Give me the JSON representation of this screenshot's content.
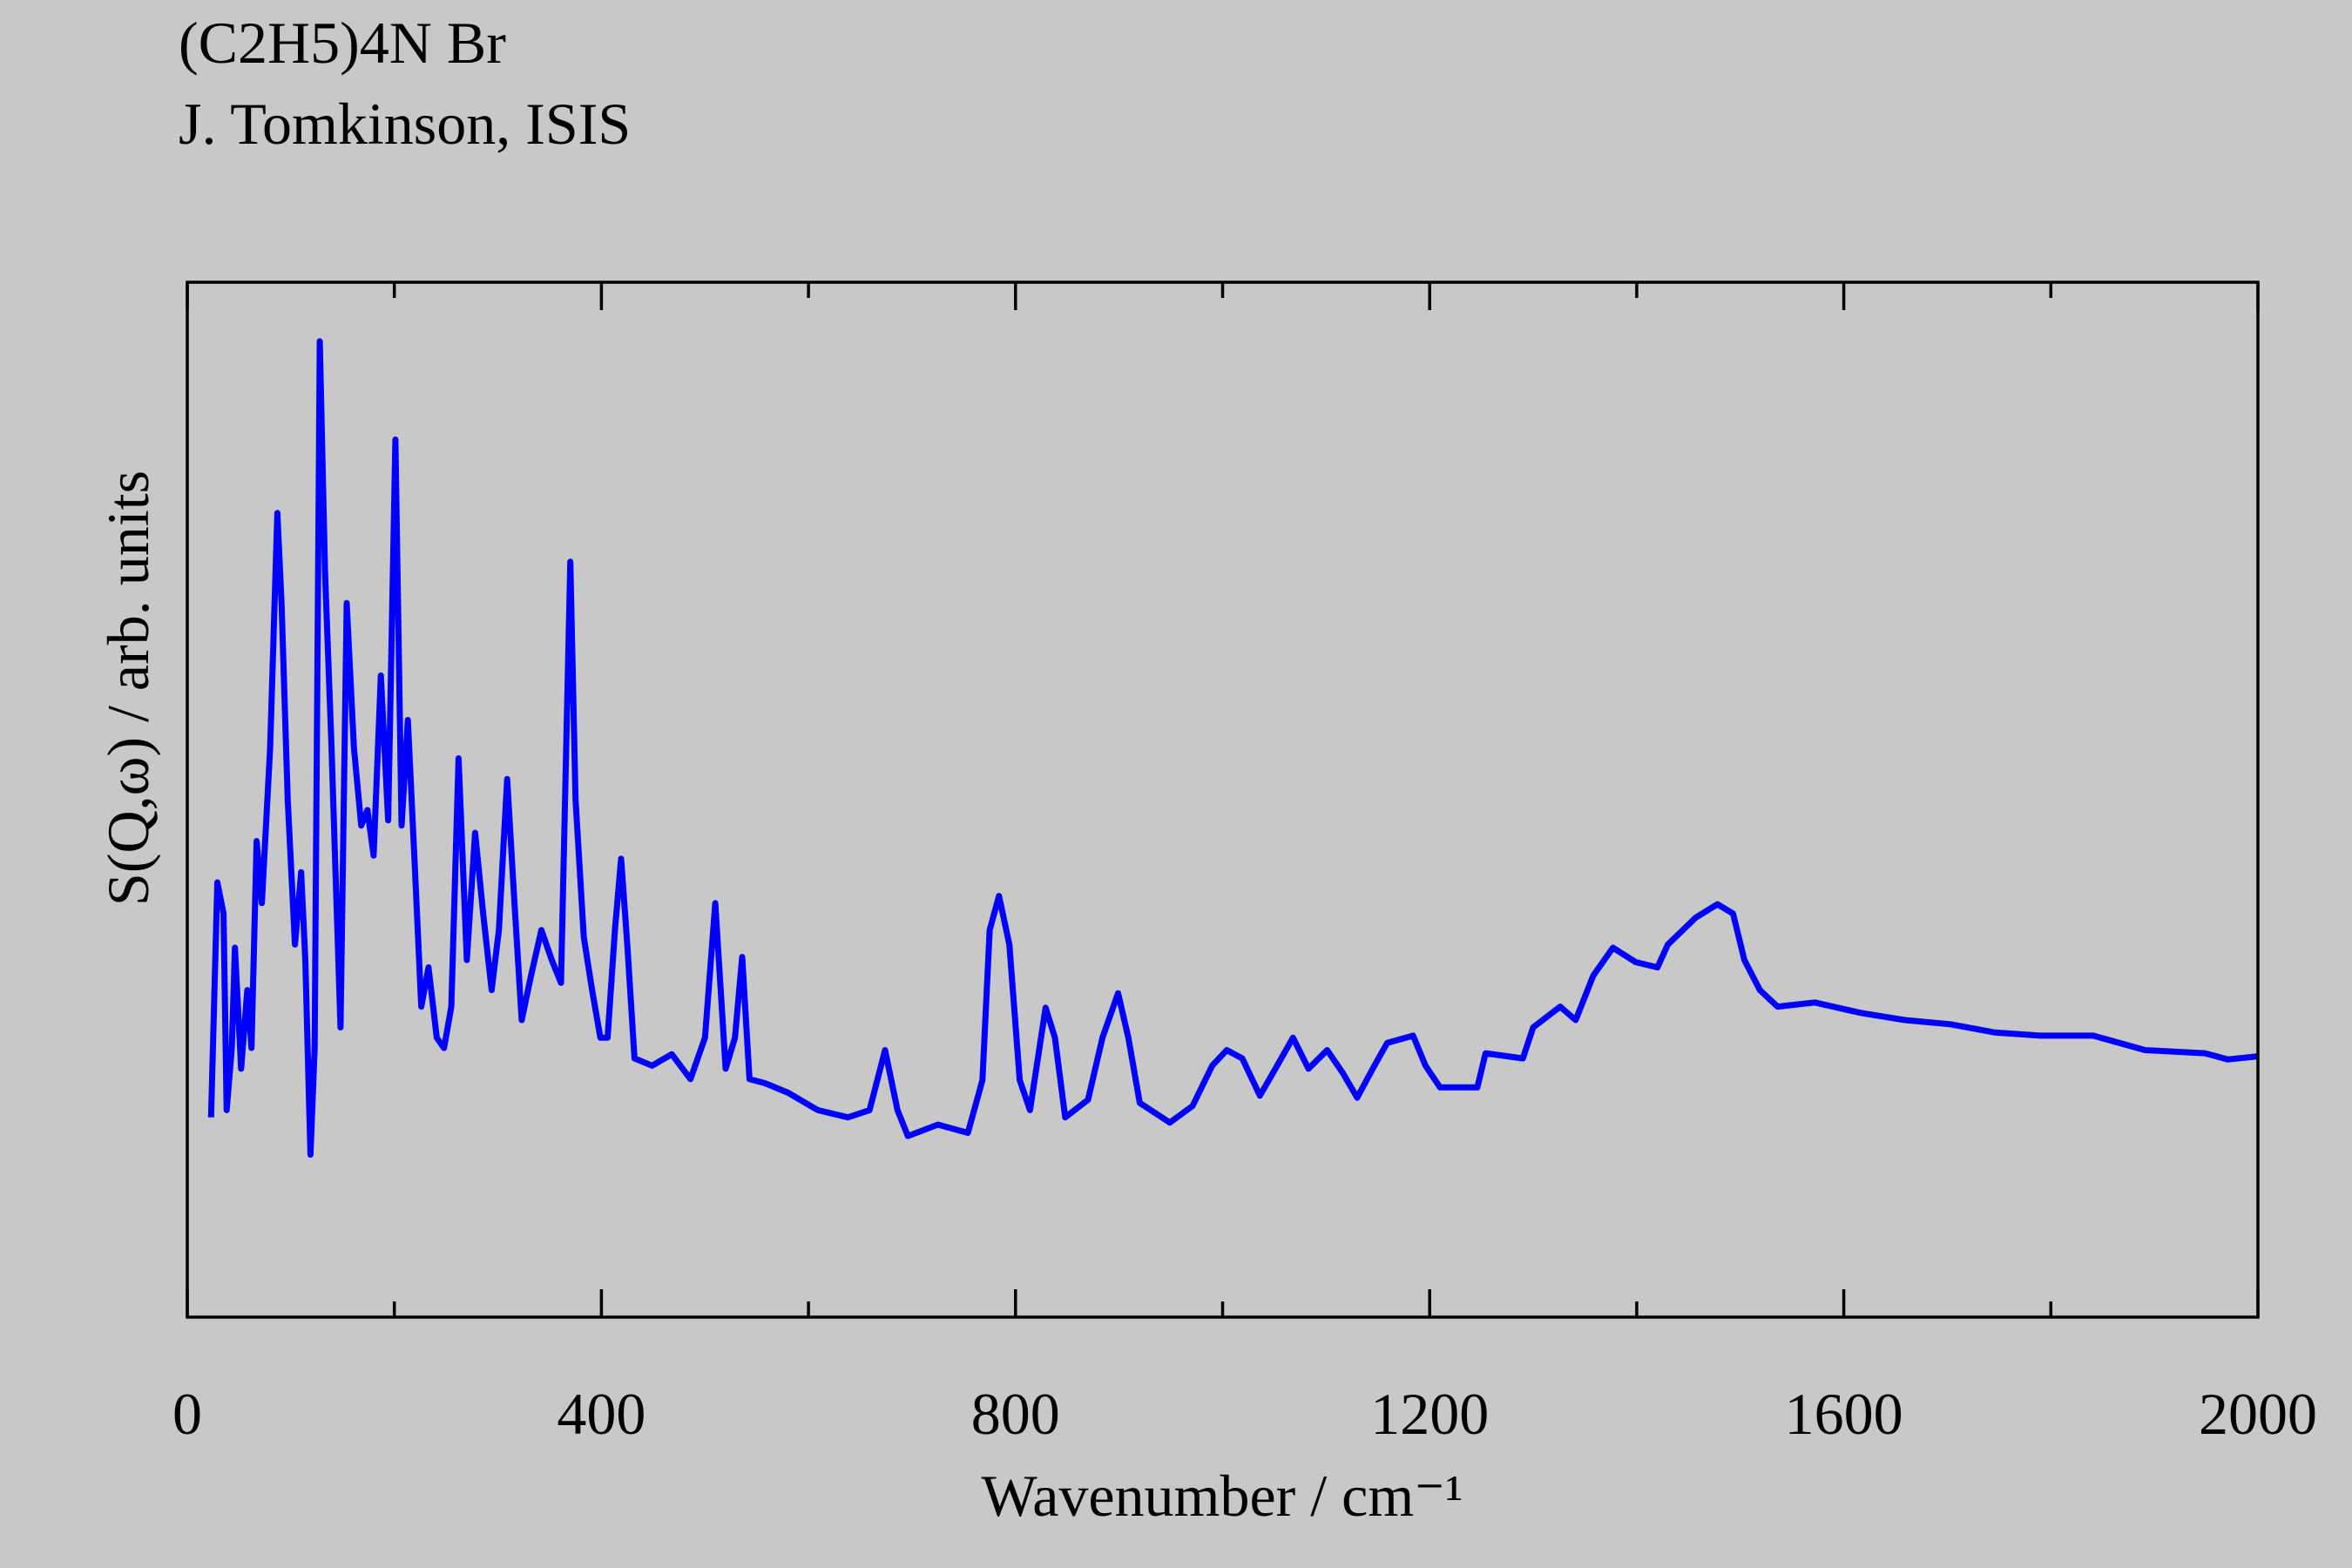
{
  "chart_data": {
    "type": "line",
    "title": "(C2H5)4N Br",
    "subtitle": "J. Tomkinson, ISIS",
    "x_label": "Wavenumber / cm⁻¹",
    "y_label": "S(Q,ω) / arb. units",
    "xlim": [
      0,
      2000
    ],
    "ylim": [
      0,
      100
    ],
    "xticks": [
      0,
      400,
      800,
      1200,
      1600,
      2000
    ],
    "xticks_minor": [
      200,
      600,
      1000,
      1400,
      1800
    ],
    "x": [
      23,
      29,
      35,
      38,
      43,
      46,
      52,
      58,
      62,
      67,
      72,
      80,
      87,
      91,
      97,
      104,
      110,
      114,
      119,
      123,
      128,
      133,
      139,
      148,
      154,
      161,
      168,
      174,
      180,
      187,
      194,
      201,
      207,
      213,
      220,
      226,
      233,
      241,
      248,
      255,
      262,
      270,
      278,
      286,
      294,
      301,
      309,
      316,
      323,
      332,
      342,
      352,
      361,
      370,
      375,
      383,
      391,
      399,
      406,
      413,
      419,
      425,
      432,
      449,
      468,
      486,
      500,
      510,
      520,
      529,
      536,
      543,
      558,
      580,
      609,
      638,
      659,
      674,
      686,
      696,
      725,
      754,
      768,
      775,
      784,
      794,
      804,
      814,
      829,
      838,
      848,
      870,
      884,
      899,
      909,
      920,
      949,
      971,
      990,
      1004,
      1019,
      1036,
      1051,
      1068,
      1083,
      1101,
      1116,
      1130,
      1145,
      1159,
      1184,
      1196,
      1210,
      1246,
      1254,
      1290,
      1300,
      1326,
      1341,
      1358,
      1377,
      1399,
      1420,
      1430,
      1457,
      1478,
      1493,
      1504,
      1519,
      1536,
      1572,
      1616,
      1659,
      1703,
      1746,
      1790,
      1841,
      1891,
      1949,
      1971,
      2000
    ],
    "series": [
      {
        "color": "#0000ff",
        "values": [
          19.3,
          42,
          39,
          20,
          26,
          35.7,
          24,
          31.6,
          26,
          46,
          40,
          55,
          77.7,
          69,
          50,
          36,
          43,
          34.5,
          15.7,
          26,
          94.3,
          72,
          56,
          28,
          69,
          55,
          47.5,
          49,
          44.6,
          62,
          48,
          84.8,
          47.5,
          57.7,
          43,
          30,
          33.8,
          27,
          26,
          30,
          54,
          34.5,
          46.8,
          38.8,
          31.6,
          37.4,
          52,
          40,
          28.7,
          33,
          37.4,
          34.5,
          32.3,
          73,
          50,
          36.7,
          31.6,
          27,
          27,
          37.4,
          44.3,
          36,
          25,
          24.3,
          25.4,
          23,
          27,
          40,
          24,
          27,
          34.8,
          23,
          22.6,
          21.7,
          20,
          19.3,
          20,
          25.8,
          20,
          17.5,
          18.6,
          17.8,
          22.9,
          37.4,
          40.7,
          36,
          22.9,
          20,
          29.9,
          27,
          19.3,
          21,
          27,
          31.3,
          27,
          20.7,
          18.8,
          20.4,
          24.3,
          25.8,
          25,
          21.4,
          24,
          27,
          24,
          25.8,
          23.6,
          21.2,
          24,
          26.5,
          27.2,
          24.3,
          22.2,
          22.2,
          25.5,
          25,
          28,
          30,
          28.7,
          33,
          35.7,
          34.3,
          33.8,
          36,
          38.6,
          39.9,
          39,
          34.5,
          31.6,
          30,
          30.4,
          29.4,
          28.7,
          28.3,
          27.5,
          27.2,
          27.2,
          25.8,
          25.5,
          24.9,
          25.2
        ]
      }
    ]
  }
}
